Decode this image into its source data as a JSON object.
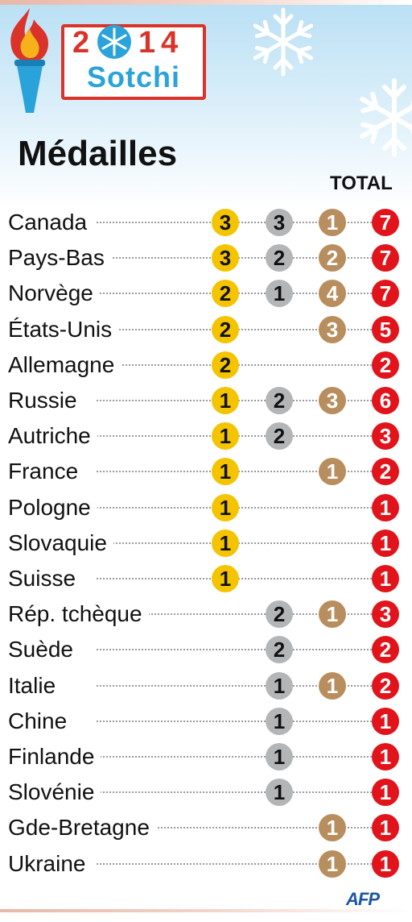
{
  "header": {
    "logo_year": [
      "2",
      "1",
      "4"
    ],
    "logo_name": "Sotchi",
    "title": "Médailles",
    "total_label": "TOTAL"
  },
  "colors": {
    "gold": "#f4c400",
    "silver": "#b3b5b7",
    "bronze": "#b98e5e",
    "total": "#e1141c",
    "logo_red": "#d9332a",
    "logo_blue": "#2aa3db"
  },
  "rows": [
    {
      "country": "Canada",
      "gold": "3",
      "silver": "3",
      "bronze": "1",
      "total": "7"
    },
    {
      "country": "Pays-Bas",
      "gold": "3",
      "silver": "2",
      "bronze": "2",
      "total": "7"
    },
    {
      "country": "Norvège",
      "gold": "2",
      "silver": "1",
      "bronze": "4",
      "total": "7"
    },
    {
      "country": "États-Unis",
      "gold": "2",
      "silver": "",
      "bronze": "3",
      "total": "5"
    },
    {
      "country": "Allemagne",
      "gold": "2",
      "silver": "",
      "bronze": "",
      "total": "2"
    },
    {
      "country": "Russie",
      "gold": "1",
      "silver": "2",
      "bronze": "3",
      "total": "6"
    },
    {
      "country": "Autriche",
      "gold": "1",
      "silver": "2",
      "bronze": "",
      "total": "3"
    },
    {
      "country": "France",
      "gold": "1",
      "silver": "",
      "bronze": "1",
      "total": "2"
    },
    {
      "country": "Pologne",
      "gold": "1",
      "silver": "",
      "bronze": "",
      "total": "1"
    },
    {
      "country": "Slovaquie",
      "gold": "1",
      "silver": "",
      "bronze": "",
      "total": "1"
    },
    {
      "country": "Suisse",
      "gold": "1",
      "silver": "",
      "bronze": "",
      "total": "1"
    },
    {
      "country": "Rép. tchèque",
      "gold": "",
      "silver": "2",
      "bronze": "1",
      "total": "3"
    },
    {
      "country": "Suède",
      "gold": "",
      "silver": "2",
      "bronze": "",
      "total": "2"
    },
    {
      "country": "Italie",
      "gold": "",
      "silver": "1",
      "bronze": "1",
      "total": "2"
    },
    {
      "country": "Chine",
      "gold": "",
      "silver": "1",
      "bronze": "",
      "total": "1"
    },
    {
      "country": "Finlande",
      "gold": "",
      "silver": "1",
      "bronze": "",
      "total": "1"
    },
    {
      "country": "Slovénie",
      "gold": "",
      "silver": "1",
      "bronze": "",
      "total": "1"
    },
    {
      "country": "Gde-Bretagne",
      "gold": "",
      "silver": "",
      "bronze": "1",
      "total": "1"
    },
    {
      "country": "Ukraine",
      "gold": "",
      "silver": "",
      "bronze": "1",
      "total": "1"
    }
  ],
  "footer": {
    "credit": "AFP"
  }
}
